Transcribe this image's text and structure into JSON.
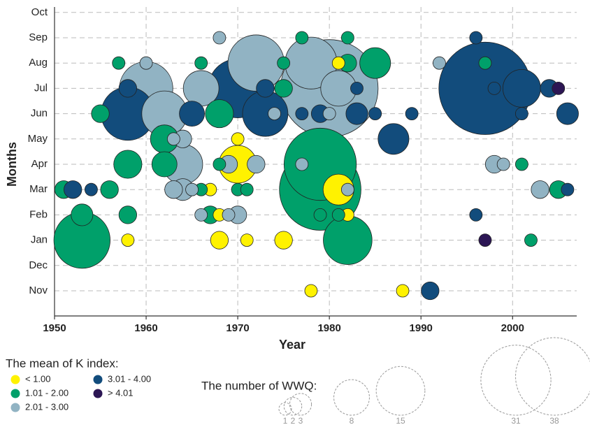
{
  "chart_data": {
    "type": "bubble",
    "x_label": "Year",
    "y_label": "Months",
    "xlim": [
      1950,
      2007
    ],
    "xticks": [
      1950,
      1960,
      1970,
      1980,
      1990,
      2000
    ],
    "categories": [
      "Nov",
      "Dec",
      "Jan",
      "Feb",
      "Mar",
      "Apr",
      "May",
      "Jun",
      "Jul",
      "Aug",
      "Sep",
      "Oct"
    ],
    "grid": true,
    "legend_title": "The mean of K index:",
    "series": [
      {
        "name": "< 1.00",
        "color": "#fff200",
        "x": [
          1981,
          1970,
          1970,
          1967,
          1981,
          1968,
          1982,
          1958,
          1968,
          1971,
          1975,
          1978,
          1988
        ],
        "y": [
          "Aug",
          "May",
          "Apr",
          "Mar",
          "Mar",
          "Feb",
          "Feb",
          "Jan",
          "Jan",
          "Jan",
          "Jan",
          "Nov",
          "Nov"
        ],
        "sizes": [
          1,
          1,
          9,
          1,
          6,
          1,
          1,
          1,
          2,
          1,
          2,
          1,
          1
        ]
      },
      {
        "name": "1.01 - 2.00",
        "color": "#00a06a",
        "x": [
          1977,
          1982,
          1957,
          1966,
          1975,
          1982,
          1985,
          1997,
          1975,
          1955,
          1968,
          1962,
          1958,
          1962,
          1968,
          1979,
          2001,
          1951,
          1956,
          1966,
          1970,
          1971,
          1979,
          2005,
          1953,
          1958,
          1967,
          1979,
          1981,
          1953,
          1982,
          2002
        ],
        "y": [
          "Sep",
          "Sep",
          "Aug",
          "Aug",
          "Aug",
          "Aug",
          "Aug",
          "Aug",
          "Jul",
          "Jun",
          "Jun",
          "May",
          "Apr",
          "Apr",
          "Apr",
          "Apr",
          "Apr",
          "Mar",
          "Mar",
          "Mar",
          "Mar",
          "Mar",
          "Mar",
          "Mar",
          "Feb",
          "Feb",
          "Feb",
          "Feb",
          "Feb",
          "Jan",
          "Jan",
          "Jan"
        ],
        "sizes": [
          1,
          1,
          1,
          1,
          1,
          2,
          6,
          1,
          2,
          2,
          5,
          5,
          5,
          4,
          1,
          33,
          1,
          2,
          2,
          1,
          1,
          1,
          42,
          2,
          3,
          2,
          2,
          1,
          1,
          20,
          15,
          1
        ]
      },
      {
        "name": "2.01 - 3.00",
        "color": "#91b3c3",
        "x": [
          1968,
          1960,
          1972,
          1978,
          1992,
          1960,
          1966,
          1980,
          1981,
          1962,
          1974,
          1980,
          1963,
          1964,
          1964,
          1969,
          1972,
          1977,
          1998,
          1999,
          1963,
          1964,
          1965,
          1982,
          2003,
          1966,
          1969,
          1970
        ],
        "y": [
          "Sep",
          "Aug",
          "Aug",
          "Aug",
          "Aug",
          "Jul",
          "Jul",
          "Jul",
          "Jul",
          "Jun",
          "Jun",
          "Jun",
          "May",
          "May",
          "Apr",
          "Apr",
          "Apr",
          "Apr",
          "Apr",
          "Apr",
          "Mar",
          "Mar",
          "Mar",
          "Mar",
          "Mar",
          "Feb",
          "Feb",
          "Feb"
        ],
        "sizes": [
          1,
          1,
          20,
          17,
          1,
          18,
          8,
          60,
          8,
          13,
          1,
          1,
          1,
          2,
          10,
          2,
          2,
          1,
          2,
          1,
          2,
          3,
          1,
          1,
          2,
          1,
          1,
          2
        ]
      },
      {
        "name": "3.01 - 4.00",
        "color": "#124c7c",
        "x": [
          1996,
          1958,
          1970,
          1973,
          1983,
          1997,
          1998,
          2001,
          2004,
          1958,
          1965,
          1973,
          1977,
          1979,
          1983,
          1985,
          1989,
          2001,
          2006,
          1987,
          1952,
          1954,
          2006,
          1996,
          1991
        ],
        "y": [
          "Sep",
          "Jul",
          "Jul",
          "Jul",
          "Jul",
          "Jul",
          "Jul",
          "Jul",
          "Jul",
          "Jun",
          "Jun",
          "Jun",
          "Jun",
          "Jun",
          "Jun",
          "Jun",
          "Jun",
          "Jun",
          "Jun",
          "May",
          "Mar",
          "Mar",
          "Mar",
          "Feb",
          "Nov"
        ],
        "sizes": [
          1,
          2,
          22,
          2,
          1,
          54,
          1,
          9,
          2,
          18,
          4,
          13,
          1,
          2,
          3,
          1,
          1,
          1,
          3,
          6,
          2,
          1,
          1,
          1,
          2
        ]
      },
      {
        "name": "> 4.01",
        "color": "#2c1654",
        "x": [
          2005,
          1997
        ],
        "y": [
          "Jul",
          "Jan"
        ],
        "sizes": [
          1,
          1
        ]
      }
    ],
    "size_legend": {
      "title": "The number of WWQ:",
      "values": [
        1,
        2,
        3,
        8,
        15,
        31,
        38
      ]
    }
  }
}
